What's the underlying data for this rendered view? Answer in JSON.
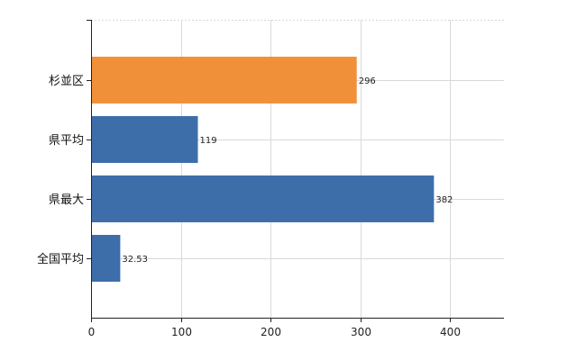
{
  "chart_data": {
    "type": "bar",
    "orientation": "horizontal",
    "categories": [
      "杉並区",
      "県平均",
      "県最大",
      "全国平均"
    ],
    "values": [
      296,
      119,
      382,
      32.53
    ],
    "value_labels": [
      "296",
      "119",
      "382",
      "32.53"
    ],
    "bar_colors": [
      "#f0913a",
      "#3d6eaa",
      "#3d6eaa",
      "#3d6eaa"
    ],
    "xlim": [
      0,
      460
    ],
    "xticks": [
      0,
      100,
      200,
      300,
      400
    ],
    "xtick_labels": [
      "0",
      "100",
      "200",
      "300",
      "400"
    ],
    "title": "",
    "xlabel": "",
    "ylabel": "",
    "grid": true,
    "grid_color": "#d9d9d9",
    "axis_color": "#222222"
  }
}
